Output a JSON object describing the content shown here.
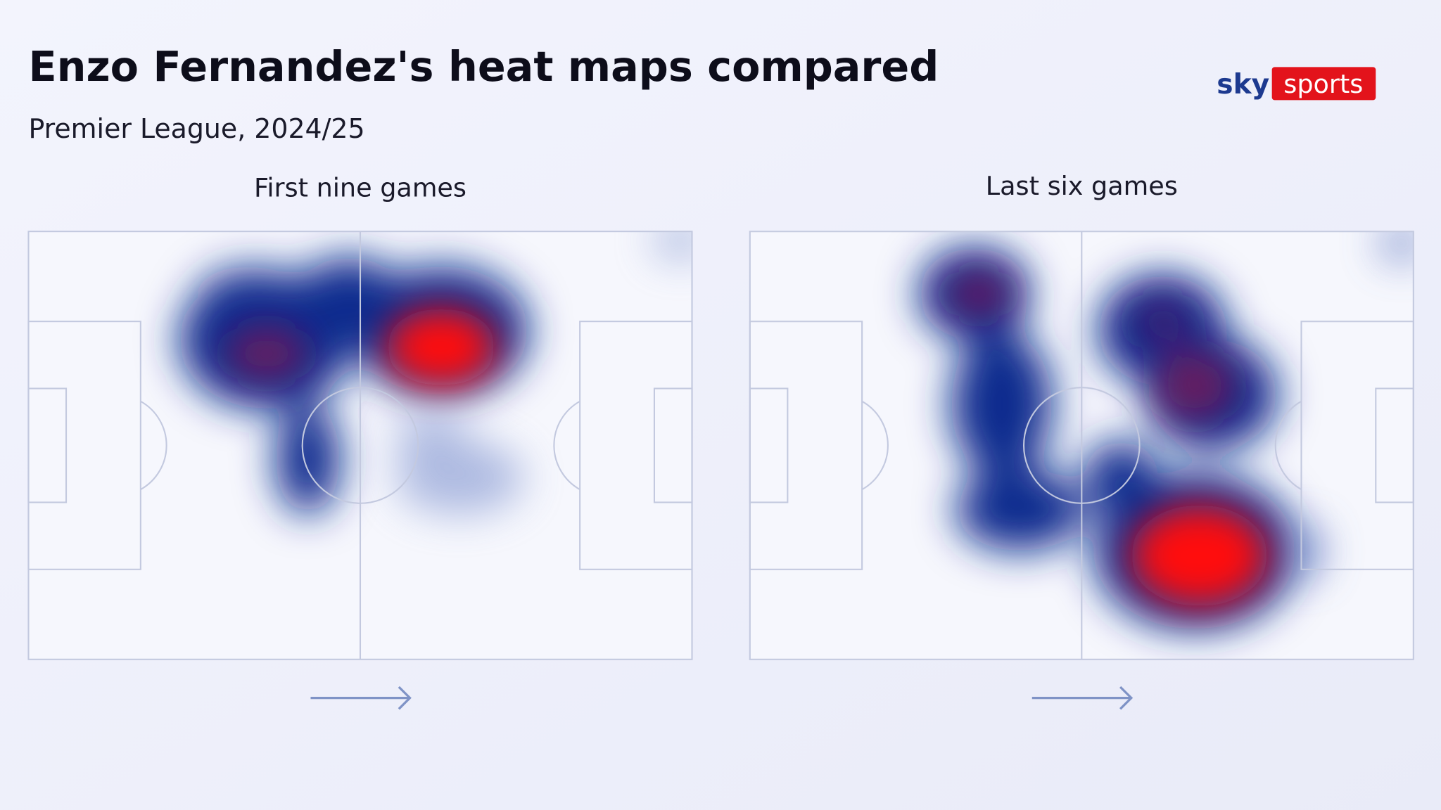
{
  "header": {
    "title": "Enzo Fernandez's heat maps compared",
    "subtitle": "Premier League, 2024/25"
  },
  "panels": [
    {
      "title": "First nine games"
    },
    {
      "title": "Last six games"
    }
  ],
  "logo": {
    "brand": "sky",
    "product": "sports"
  }
}
